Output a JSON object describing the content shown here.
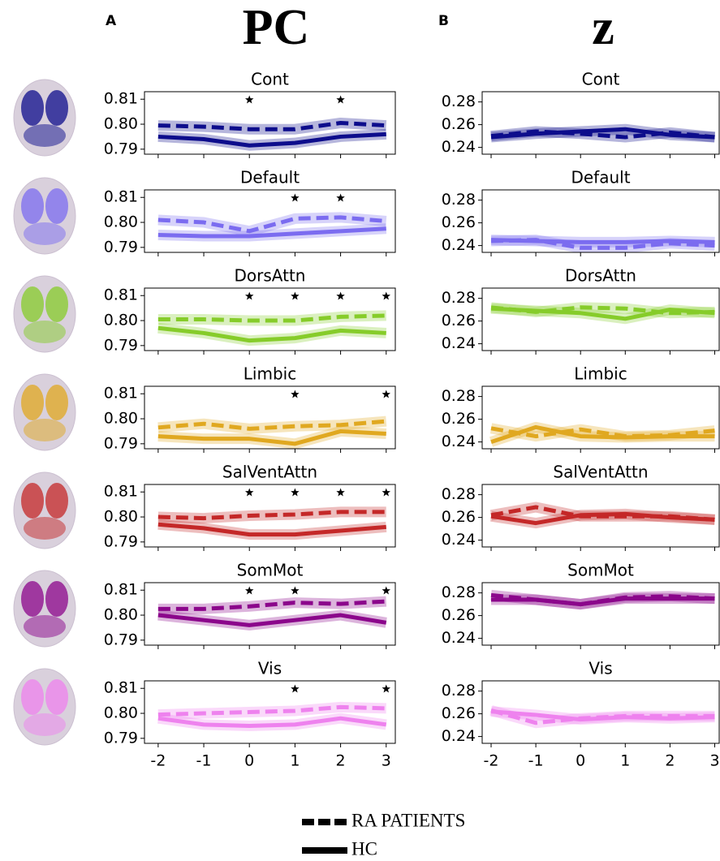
{
  "panels": [
    {
      "letter": "A",
      "title": "PC"
    },
    {
      "letter": "B",
      "title": "z"
    }
  ],
  "legend": [
    {
      "name": "RA PATIENTS",
      "dashed": true
    },
    {
      "name": "HC",
      "dashed": false
    }
  ],
  "chart_data": [
    {
      "type": "line",
      "title": "Cont",
      "color": "#0d0d8c",
      "x": [
        -2,
        -1,
        0,
        1,
        2,
        3
      ],
      "xlim": [
        -2.3,
        3.2
      ],
      "xticks": [
        -2,
        -1,
        0,
        1,
        2,
        3
      ],
      "ylim": [
        0.788,
        0.813
      ],
      "yticks": [
        0.79,
        {
          "value": 0.8,
          "label": "0.80"
        },
        0.81
      ],
      "significant_x": [
        0,
        2
      ],
      "series": [
        {
          "values": [
            0.7995,
            0.799,
            0.798,
            0.798,
            0.8005,
            0.7995
          ]
        },
        {
          "values": [
            0.795,
            0.794,
            0.7915,
            0.7925,
            0.795,
            0.796
          ]
        }
      ]
    },
    {
      "type": "line",
      "title": "Default",
      "color": "#7b6cf0",
      "x": [
        -2,
        -1,
        0,
        1,
        2,
        3
      ],
      "xlim": [
        -2.3,
        3.2
      ],
      "xticks": [
        -2,
        -1,
        0,
        1,
        2,
        3
      ],
      "ylim": [
        0.788,
        0.813
      ],
      "yticks": [
        0.79,
        {
          "value": 0.8,
          "label": "0.80"
        },
        0.81
      ],
      "significant_x": [
        1,
        2
      ],
      "series": [
        {
          "values": [
            0.801,
            0.8,
            0.7965,
            0.8015,
            0.802,
            0.8005
          ]
        },
        {
          "values": [
            0.795,
            0.7945,
            0.7945,
            0.7955,
            0.7965,
            0.7975
          ]
        }
      ]
    },
    {
      "type": "line",
      "title": "DorsAttn",
      "color": "#86cc2a",
      "x": [
        -2,
        -1,
        0,
        1,
        2,
        3
      ],
      "xlim": [
        -2.3,
        3.2
      ],
      "xticks": [
        -2,
        -1,
        0,
        1,
        2,
        3
      ],
      "ylim": [
        0.788,
        0.813
      ],
      "yticks": [
        0.79,
        {
          "value": 0.8,
          "label": "0.80"
        },
        0.81
      ],
      "significant_x": [
        0,
        1,
        2,
        3
      ],
      "series": [
        {
          "values": [
            0.8005,
            0.8005,
            0.8,
            0.8,
            0.8015,
            0.802
          ]
        },
        {
          "values": [
            0.797,
            0.795,
            0.792,
            0.793,
            0.796,
            0.795
          ]
        }
      ]
    },
    {
      "type": "line",
      "title": "Limbic",
      "color": "#e0a820",
      "x": [
        -2,
        -1,
        0,
        1,
        2,
        3
      ],
      "xlim": [
        -2.3,
        3.2
      ],
      "xticks": [
        -2,
        -1,
        0,
        1,
        2,
        3
      ],
      "ylim": [
        0.788,
        0.813
      ],
      "yticks": [
        0.79,
        {
          "value": 0.8,
          "label": "0.80"
        },
        0.81
      ],
      "significant_x": [
        1,
        3
      ],
      "series": [
        {
          "values": [
            0.7965,
            0.798,
            0.796,
            0.797,
            0.7975,
            0.799
          ]
        },
        {
          "values": [
            0.793,
            0.792,
            0.792,
            0.79,
            0.795,
            0.794
          ]
        }
      ]
    },
    {
      "type": "line",
      "title": "SalVentAttn",
      "color": "#c42828",
      "x": [
        -2,
        -1,
        0,
        1,
        2,
        3
      ],
      "xlim": [
        -2.3,
        3.2
      ],
      "xticks": [
        -2,
        -1,
        0,
        1,
        2,
        3
      ],
      "ylim": [
        0.788,
        0.813
      ],
      "yticks": [
        0.79,
        {
          "value": 0.8,
          "label": "0.80"
        },
        0.81
      ],
      "significant_x": [
        0,
        1,
        2,
        3
      ],
      "series": [
        {
          "values": [
            0.8,
            0.7995,
            0.8005,
            0.801,
            0.802,
            0.802
          ]
        },
        {
          "values": [
            0.797,
            0.7955,
            0.793,
            0.793,
            0.7945,
            0.796
          ]
        }
      ]
    },
    {
      "type": "line",
      "title": "SomMot",
      "color": "#8b068b",
      "x": [
        -2,
        -1,
        0,
        1,
        2,
        3
      ],
      "xlim": [
        -2.3,
        3.2
      ],
      "xticks": [
        -2,
        -1,
        0,
        1,
        2,
        3
      ],
      "ylim": [
        0.788,
        0.813
      ],
      "yticks": [
        0.79,
        {
          "value": 0.8,
          "label": "0.80"
        },
        0.81
      ],
      "significant_x": [
        0,
        1,
        3
      ],
      "series": [
        {
          "values": [
            0.8025,
            0.8025,
            0.8035,
            0.805,
            0.8045,
            0.8055
          ]
        },
        {
          "values": [
            0.8,
            0.798,
            0.796,
            0.798,
            0.8,
            0.797
          ]
        }
      ]
    },
    {
      "type": "line",
      "title": "Vis",
      "color": "#ee82ee",
      "x": [
        -2,
        -1,
        0,
        1,
        2,
        3
      ],
      "xlim": [
        -2.3,
        3.2
      ],
      "xticks": [
        -2,
        -1,
        0,
        1,
        2,
        3
      ],
      "ylim": [
        0.788,
        0.813
      ],
      "yticks": [
        0.79,
        {
          "value": 0.8,
          "label": "0.80"
        },
        0.81
      ],
      "significant_x": [
        1,
        3
      ],
      "series": [
        {
          "values": [
            0.7995,
            0.8,
            0.8005,
            0.801,
            0.8025,
            0.802
          ]
        },
        {
          "values": [
            0.798,
            0.7955,
            0.795,
            0.7955,
            0.798,
            0.7955
          ]
        }
      ]
    },
    {
      "type": "line",
      "title": "Cont",
      "color": "#0d0d8c",
      "x": [
        -2,
        -1,
        0,
        1,
        2,
        3
      ],
      "xlim": [
        -2.2,
        3.1
      ],
      "xticks": [
        -2,
        -1,
        0,
        1,
        2,
        3
      ],
      "ylim": [
        0.234,
        0.289
      ],
      "yticks": [
        0.24,
        0.26,
        0.28
      ],
      "series": [
        {
          "values": [
            0.25,
            0.254,
            0.252,
            0.249,
            0.253,
            0.249
          ]
        },
        {
          "values": [
            0.249,
            0.252,
            0.254,
            0.256,
            0.251,
            0.249
          ]
        }
      ]
    },
    {
      "type": "line",
      "title": "Default",
      "color": "#7b6cf0",
      "x": [
        -2,
        -1,
        0,
        1,
        2,
        3
      ],
      "xlim": [
        -2.2,
        3.1
      ],
      "xticks": [
        -2,
        -1,
        0,
        1,
        2,
        3
      ],
      "ylim": [
        0.234,
        0.289
      ],
      "yticks": [
        0.24,
        0.26,
        0.28
      ],
      "series": [
        {
          "values": [
            0.244,
            0.245,
            0.238,
            0.238,
            0.242,
            0.24
          ]
        },
        {
          "values": [
            0.245,
            0.244,
            0.243,
            0.243,
            0.244,
            0.243
          ]
        }
      ]
    },
    {
      "type": "line",
      "title": "DorsAttn",
      "color": "#86cc2a",
      "x": [
        -2,
        -1,
        0,
        1,
        2,
        3
      ],
      "xlim": [
        -2.2,
        3.1
      ],
      "xticks": [
        -2,
        -1,
        0,
        1,
        2,
        3
      ],
      "ylim": [
        0.234,
        0.289
      ],
      "yticks": [
        0.24,
        0.26,
        0.28
      ],
      "series": [
        {
          "values": [
            0.272,
            0.268,
            0.272,
            0.271,
            0.267,
            0.268
          ]
        },
        {
          "values": [
            0.271,
            0.269,
            0.267,
            0.262,
            0.27,
            0.267
          ]
        }
      ]
    },
    {
      "type": "line",
      "title": "Limbic",
      "color": "#e0a820",
      "x": [
        -2,
        -1,
        0,
        1,
        2,
        3
      ],
      "xlim": [
        -2.2,
        3.1
      ],
      "xticks": [
        -2,
        -1,
        0,
        1,
        2,
        3
      ],
      "ylim": [
        0.234,
        0.289
      ],
      "yticks": [
        0.24,
        0.26,
        0.28
      ],
      "series": [
        {
          "values": [
            0.252,
            0.245,
            0.251,
            0.245,
            0.246,
            0.25
          ]
        },
        {
          "values": [
            0.24,
            0.253,
            0.245,
            0.244,
            0.245,
            0.245
          ]
        }
      ]
    },
    {
      "type": "line",
      "title": "SalVentAttn",
      "color": "#c42828",
      "x": [
        -2,
        -1,
        0,
        1,
        2,
        3
      ],
      "xlim": [
        -2.2,
        3.1
      ],
      "xticks": [
        -2,
        -1,
        0,
        1,
        2,
        3
      ],
      "ylim": [
        0.234,
        0.289
      ],
      "yticks": [
        0.24,
        0.26,
        0.28
      ],
      "series": [
        {
          "values": [
            0.262,
            0.269,
            0.261,
            0.261,
            0.261,
            0.258
          ]
        },
        {
          "values": [
            0.261,
            0.255,
            0.262,
            0.263,
            0.26,
            0.258
          ]
        }
      ]
    },
    {
      "type": "line",
      "title": "SomMot",
      "color": "#8b068b",
      "x": [
        -2,
        -1,
        0,
        1,
        2,
        3
      ],
      "xlim": [
        -2.2,
        3.1
      ],
      "xticks": [
        -2,
        -1,
        0,
        1,
        2,
        3
      ],
      "ylim": [
        0.234,
        0.289
      ],
      "yticks": [
        0.24,
        0.26,
        0.28
      ],
      "series": [
        {
          "values": [
            0.278,
            0.274,
            0.27,
            0.276,
            0.277,
            0.275
          ]
        },
        {
          "values": [
            0.274,
            0.274,
            0.27,
            0.275,
            0.275,
            0.275
          ]
        }
      ]
    },
    {
      "type": "line",
      "title": "Vis",
      "color": "#ee82ee",
      "x": [
        -2,
        -1,
        0,
        1,
        2,
        3
      ],
      "xlim": [
        -2.2,
        3.1
      ],
      "xticks": [
        -2,
        -1,
        0,
        1,
        2,
        3
      ],
      "ylim": [
        0.234,
        0.289
      ],
      "yticks": [
        0.24,
        0.26,
        0.28
      ],
      "series": [
        {
          "values": [
            0.263,
            0.252,
            0.256,
            0.258,
            0.258,
            0.258
          ]
        },
        {
          "values": [
            0.262,
            0.259,
            0.255,
            0.257,
            0.256,
            0.257
          ]
        }
      ]
    }
  ]
}
